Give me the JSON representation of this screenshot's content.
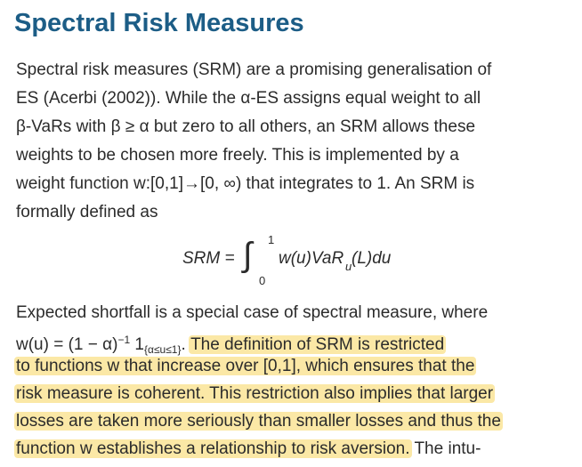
{
  "title": "Spectral Risk Measures",
  "paragraph_1": {
    "lines": [
      "Spectral risk measures (SRM) are a promising generalisation of",
      "ES (Acerbi (2002)). While the α-ES assigns equal weight to all",
      "β-VaRs with β ≥ α but zero to all others, an SRM allows these",
      "weights to be chosen more freely. This is implemented by a",
      "weight function w:[0,1]→[0, ∞) that integrates to 1. An SRM is",
      "formally defined as"
    ]
  },
  "formula": {
    "lhs": "SRM =",
    "integral": "∫",
    "upper": "1",
    "lower": "0",
    "integrand": "w(u)VaR",
    "subscript": "u",
    "tail": " (L)du"
  },
  "paragraph_2": {
    "lines": [
      [
        {
          "text": "Expected shortfall is a special case of spectral measure, where"
        }
      ],
      [
        {
          "text": "w(u) = (1 − α)"
        },
        {
          "text": "−1",
          "style": "sup"
        },
        {
          "text": " 1"
        },
        {
          "text": "{α≤u≤1}",
          "style": "sub"
        },
        {
          "text": ". "
        },
        {
          "text": "The definition of SRM is restricted",
          "highlighted": true
        }
      ],
      [
        {
          "text": "to functions w that increase over [0,1], which ensures that the",
          "highlighted": true
        }
      ],
      [
        {
          "text": "risk measure is coherent. This restriction also implies that larger",
          "highlighted": true
        }
      ],
      [
        {
          "text": "losses are taken more seriously than smaller losses and thus the",
          "highlighted": true
        }
      ],
      [
        {
          "text": "function w establishes a relationship to risk aversion.",
          "highlighted": true
        },
        {
          "text": " The intu-"
        }
      ]
    ]
  }
}
